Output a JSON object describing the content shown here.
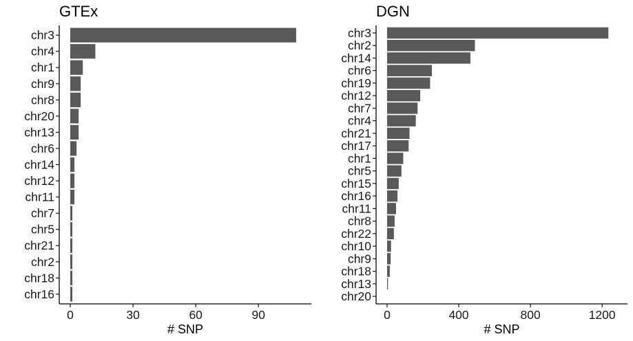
{
  "chart_data": [
    {
      "type": "bar",
      "orientation": "horizontal",
      "title": "GTEx",
      "xlabel": "# SNP",
      "ylabel": "",
      "xlim": [
        0,
        110
      ],
      "xticks": [
        0,
        30,
        60,
        90
      ],
      "grid": false,
      "bar_color": "#595959",
      "categories": [
        "chr3",
        "chr4",
        "chr1",
        "chr9",
        "chr8",
        "chr20",
        "chr13",
        "chr6",
        "chr14",
        "chr12",
        "chr11",
        "chr7",
        "chr5",
        "chr21",
        "chr2",
        "chr18",
        "chr16"
      ],
      "values": [
        108,
        12,
        6,
        5,
        5,
        4,
        4,
        3,
        2,
        2,
        2,
        1,
        1,
        1,
        1,
        1,
        1
      ]
    },
    {
      "type": "bar",
      "orientation": "horizontal",
      "title": "DGN",
      "xlabel": "# SNP",
      "ylabel": "",
      "xlim": [
        0,
        1280
      ],
      "xticks": [
        0,
        400,
        800,
        1200
      ],
      "grid": false,
      "bar_color": "#595959",
      "categories": [
        "chr3",
        "chr2",
        "chr14",
        "chr6",
        "chr19",
        "chr12",
        "chr7",
        "chr4",
        "chr21",
        "chr17",
        "chr1",
        "chr5",
        "chr15",
        "chr16",
        "chr11",
        "chr8",
        "chr22",
        "chr10",
        "chr9",
        "chr18",
        "chr13",
        "chr20"
      ],
      "values": [
        1235,
        490,
        465,
        250,
        240,
        185,
        170,
        160,
        125,
        120,
        90,
        80,
        65,
        58,
        50,
        42,
        38,
        22,
        20,
        15,
        5,
        0
      ]
    }
  ]
}
